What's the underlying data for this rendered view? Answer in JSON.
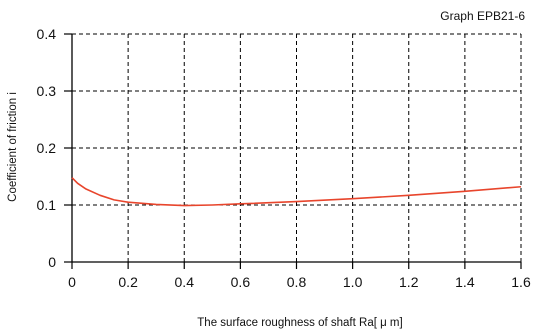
{
  "chart_data": {
    "type": "line",
    "title": "Graph EPB21-6",
    "xlabel": "The surface roughness of shaft  Ra[ μ m]",
    "ylabel": "Coefficient of friction i",
    "xlim": [
      0,
      1.6
    ],
    "ylim": [
      0,
      0.4
    ],
    "x_ticks": [
      "0",
      "0.2",
      "0.4",
      "0.6",
      "0.8",
      "1.0",
      "1.2",
      "1.4",
      "1.6"
    ],
    "y_ticks": [
      "0",
      "0.1",
      "0.2",
      "0.3",
      "0.4"
    ],
    "grid": true,
    "series": [
      {
        "color": "#e8452c",
        "x": [
          0.0,
          0.02,
          0.05,
          0.1,
          0.15,
          0.2,
          0.3,
          0.4,
          0.5,
          0.6,
          0.8,
          1.0,
          1.2,
          1.4,
          1.6
        ],
        "y": [
          0.148,
          0.138,
          0.128,
          0.117,
          0.109,
          0.105,
          0.101,
          0.099,
          0.1,
          0.102,
          0.106,
          0.111,
          0.117,
          0.124,
          0.132
        ]
      }
    ]
  }
}
